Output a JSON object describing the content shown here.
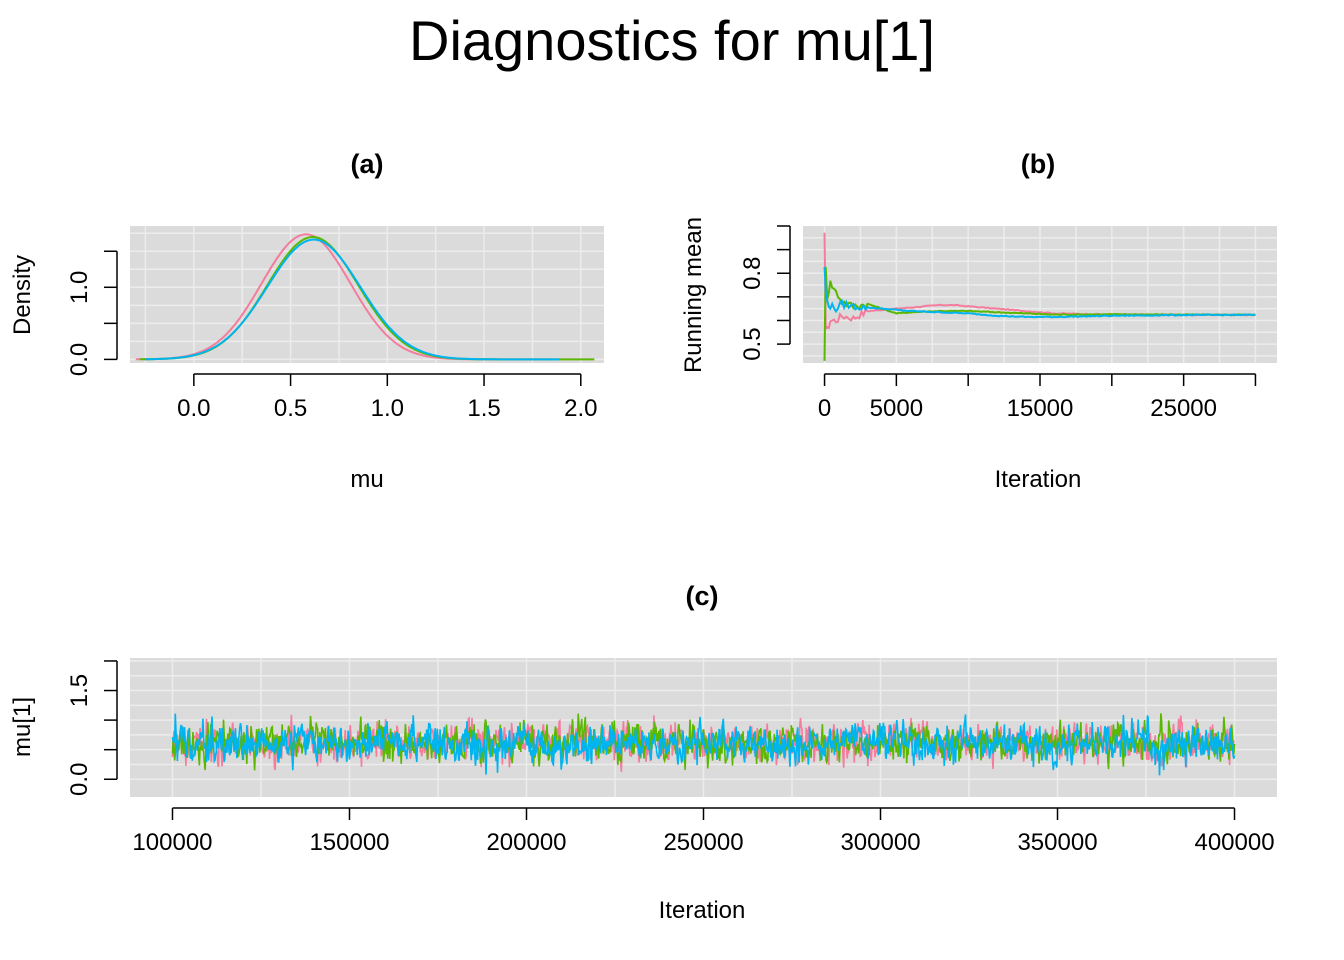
{
  "title": "Diagnostics for mu[1]",
  "colors": {
    "panel_bg": "#dbdbdb",
    "grid": "#ececec",
    "chain1": "#f47c9c",
    "chain2": "#5ab800",
    "chain3": "#00b4f0"
  },
  "chart_data": [
    {
      "id": "a",
      "type": "line",
      "title": "(a)",
      "xlabel": "mu",
      "ylabel": "Density",
      "xlim": [
        -0.33,
        2.12
      ],
      "ylim": [
        -0.05,
        1.85
      ],
      "x_ticks": [
        "0.0",
        "0.5",
        "1.0",
        "1.5",
        "2.0"
      ],
      "y_ticks": [
        "0.0",
        "1.0"
      ],
      "grid": true,
      "density_params": [
        {
          "mean": 0.58,
          "sd": 0.23,
          "range": [
            -0.3,
            1.85
          ]
        },
        {
          "mean": 0.615,
          "sd": 0.235,
          "range": [
            -0.28,
            2.07
          ]
        },
        {
          "mean": 0.62,
          "sd": 0.24,
          "range": [
            -0.25,
            1.9
          ]
        }
      ]
    },
    {
      "id": "b",
      "type": "line",
      "title": "(b)",
      "xlabel": "Iteration",
      "ylabel": "Running mean",
      "xlim": [
        -1500,
        31500
      ],
      "ylim": [
        0.42,
        1.0
      ],
      "x_ticks": [
        "0",
        "5000",
        "15000",
        "25000"
      ],
      "y_ticks": [
        "0.5",
        "0.8"
      ],
      "grid": true,
      "final_mean": 0.624,
      "series": [
        {
          "x": [
            0,
            80,
            200,
            400,
            800,
            1200,
            2000,
            3000,
            4000,
            5000,
            6000,
            7000,
            8000,
            9000,
            10000,
            12000,
            14000,
            16000,
            20000,
            25000,
            30000
          ],
          "y": [
            0.96,
            0.58,
            0.56,
            0.6,
            0.6,
            0.62,
            0.61,
            0.64,
            0.645,
            0.65,
            0.655,
            0.66,
            0.665,
            0.665,
            0.66,
            0.65,
            0.64,
            0.63,
            0.625,
            0.624,
            0.624
          ]
        },
        {
          "x": [
            0,
            80,
            200,
            400,
            800,
            1200,
            2000,
            3000,
            4000,
            5000,
            6000,
            8000,
            10000,
            12000,
            14000,
            16000,
            20000,
            25000,
            30000
          ],
          "y": [
            0.44,
            0.82,
            0.7,
            0.76,
            0.72,
            0.68,
            0.66,
            0.67,
            0.65,
            0.63,
            0.635,
            0.64,
            0.64,
            0.635,
            0.63,
            0.625,
            0.626,
            0.625,
            0.624
          ]
        },
        {
          "x": [
            0,
            80,
            200,
            400,
            800,
            1200,
            2000,
            3000,
            4000,
            5000,
            6000,
            8000,
            10000,
            12000,
            14000,
            16000,
            20000,
            25000,
            30000
          ],
          "y": [
            0.83,
            0.72,
            0.68,
            0.66,
            0.65,
            0.67,
            0.66,
            0.655,
            0.65,
            0.645,
            0.64,
            0.635,
            0.63,
            0.62,
            0.615,
            0.615,
            0.62,
            0.623,
            0.624
          ]
        }
      ]
    },
    {
      "id": "c",
      "type": "line",
      "title": "(c)",
      "xlabel": "Iteration",
      "ylabel": "mu[1]",
      "xlim": [
        88000,
        412000
      ],
      "ylim": [
        -0.3,
        2.05
      ],
      "x_ticks": [
        "100000",
        "150000",
        "200000",
        "250000",
        "300000",
        "350000",
        "400000"
      ],
      "y_ticks": [
        "0.0",
        "1.5"
      ],
      "grid": true,
      "trace_params": {
        "x_start": 100000,
        "x_end": 400000,
        "mean": 0.62,
        "sd": 0.23
      }
    }
  ]
}
